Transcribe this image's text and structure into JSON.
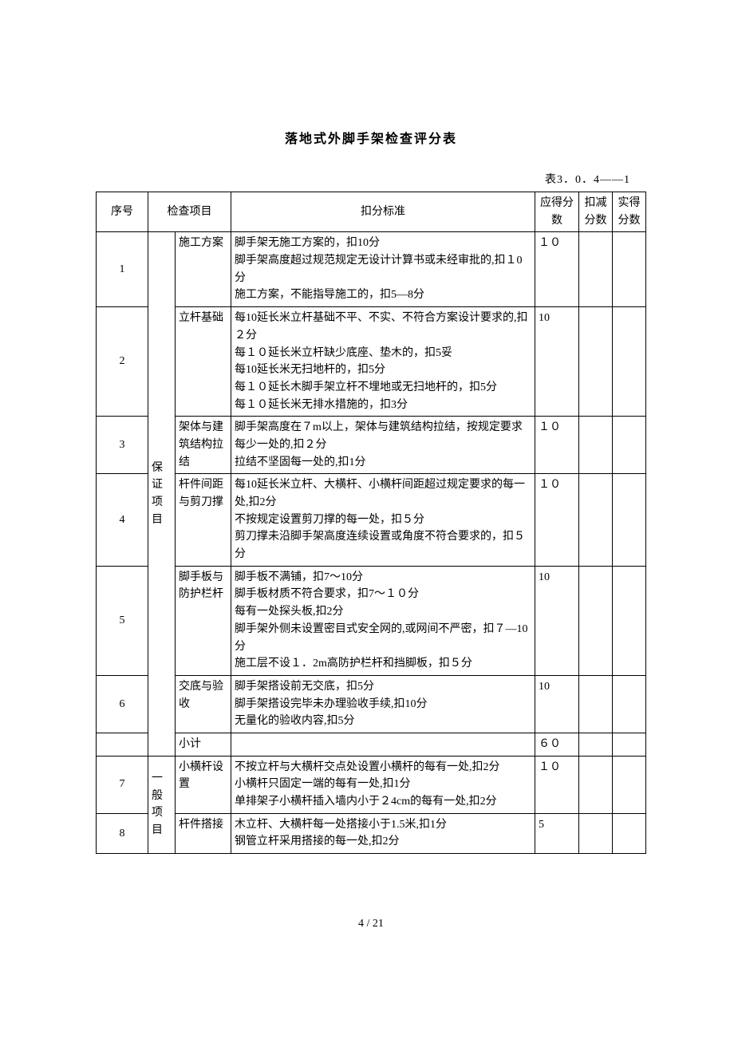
{
  "title": "落地式外脚手架检查评分表",
  "tableLabel": "表3．0．4——1",
  "headers": {
    "seq": "序号",
    "item": "检查项目",
    "criteria": "扣分标准",
    "score": "应得分数",
    "deduct": "扣减分数",
    "actual": "实得分数"
  },
  "categories": {
    "assurance": "保证项目",
    "general": "一般项目"
  },
  "rows": [
    {
      "seq": "1",
      "item": "施工方案",
      "criteria": "脚手架无施工方案的，扣10分\n脚手架高度超过规范规定无设计计算书或未经审批的,扣１0分\n施工方案，不能指导施工的，扣5―8分",
      "score": "１０"
    },
    {
      "seq": "2",
      "item": "立杆基础",
      "criteria": "每10延长米立杆基础不平、不实、不符合方案设计要求的,扣２分\n每１０延长米立杆缺少底座、垫木的，扣5妥\n每10延长米无扫地杆的，扣5分\n每１０延长木脚手架立杆不埋地或无扫地杆的，扣5分\n每１０延长米无排水措施的，扣3分",
      "score": "10"
    },
    {
      "seq": "3",
      "item": "架体与建筑结构拉结",
      "criteria": "脚手架高度在７m以上，架体与建筑结构拉结，按规定要求每少一处的,扣２分\n拉结不坚固每一处的,扣1分",
      "score": "１０"
    },
    {
      "seq": "4",
      "item": "杆件间距与剪刀撑",
      "criteria": "每10延长米立杆、大横杆、小横杆间距超过规定要求的每一处,扣2分\n不按规定设置剪刀撑的每一处，扣５分\n剪刀撑未沿脚手架高度连续设置或角度不符合要求的，扣５分",
      "score": "１０"
    },
    {
      "seq": "5",
      "item": "脚手板与防护栏杆",
      "criteria": "脚手板不满铺，扣7～10分\n脚手板材质不符合要求，扣7～１０分\n每有一处探头板,扣2分\n脚手架外侧未设置密目式安全网的,或网间不严密，扣７―10分\n施工层不设１．2m高防护栏杆和挡脚板，扣５分",
      "score": "10"
    },
    {
      "seq": "6",
      "item": "交底与验收",
      "criteria": "脚手架搭设前无交底，扣5分\n脚手架搭设完毕未办理验收手续,扣10分\n无量化的验收内容,扣5分",
      "score": "10"
    }
  ],
  "subtotal": {
    "item": "小计",
    "score": "６０"
  },
  "generalRows": [
    {
      "seq": "7",
      "item": "小横杆设置",
      "criteria": "不按立杆与大横杆交点处设置小横杆的每有一处,扣2分\n小横杆只固定一端的每有一处,扣1分\n单排架子小横杆插入墙内小于２4cm的每有一处,扣2分",
      "score": "１０"
    },
    {
      "seq": "8",
      "item": "杆件搭接",
      "criteria": "木立杆、大横杆每一处搭接小于1.5米,扣1分\n钢管立杆采用搭接的每一处,扣2分",
      "score": "5"
    }
  ],
  "pageNumber": "4 / 21"
}
